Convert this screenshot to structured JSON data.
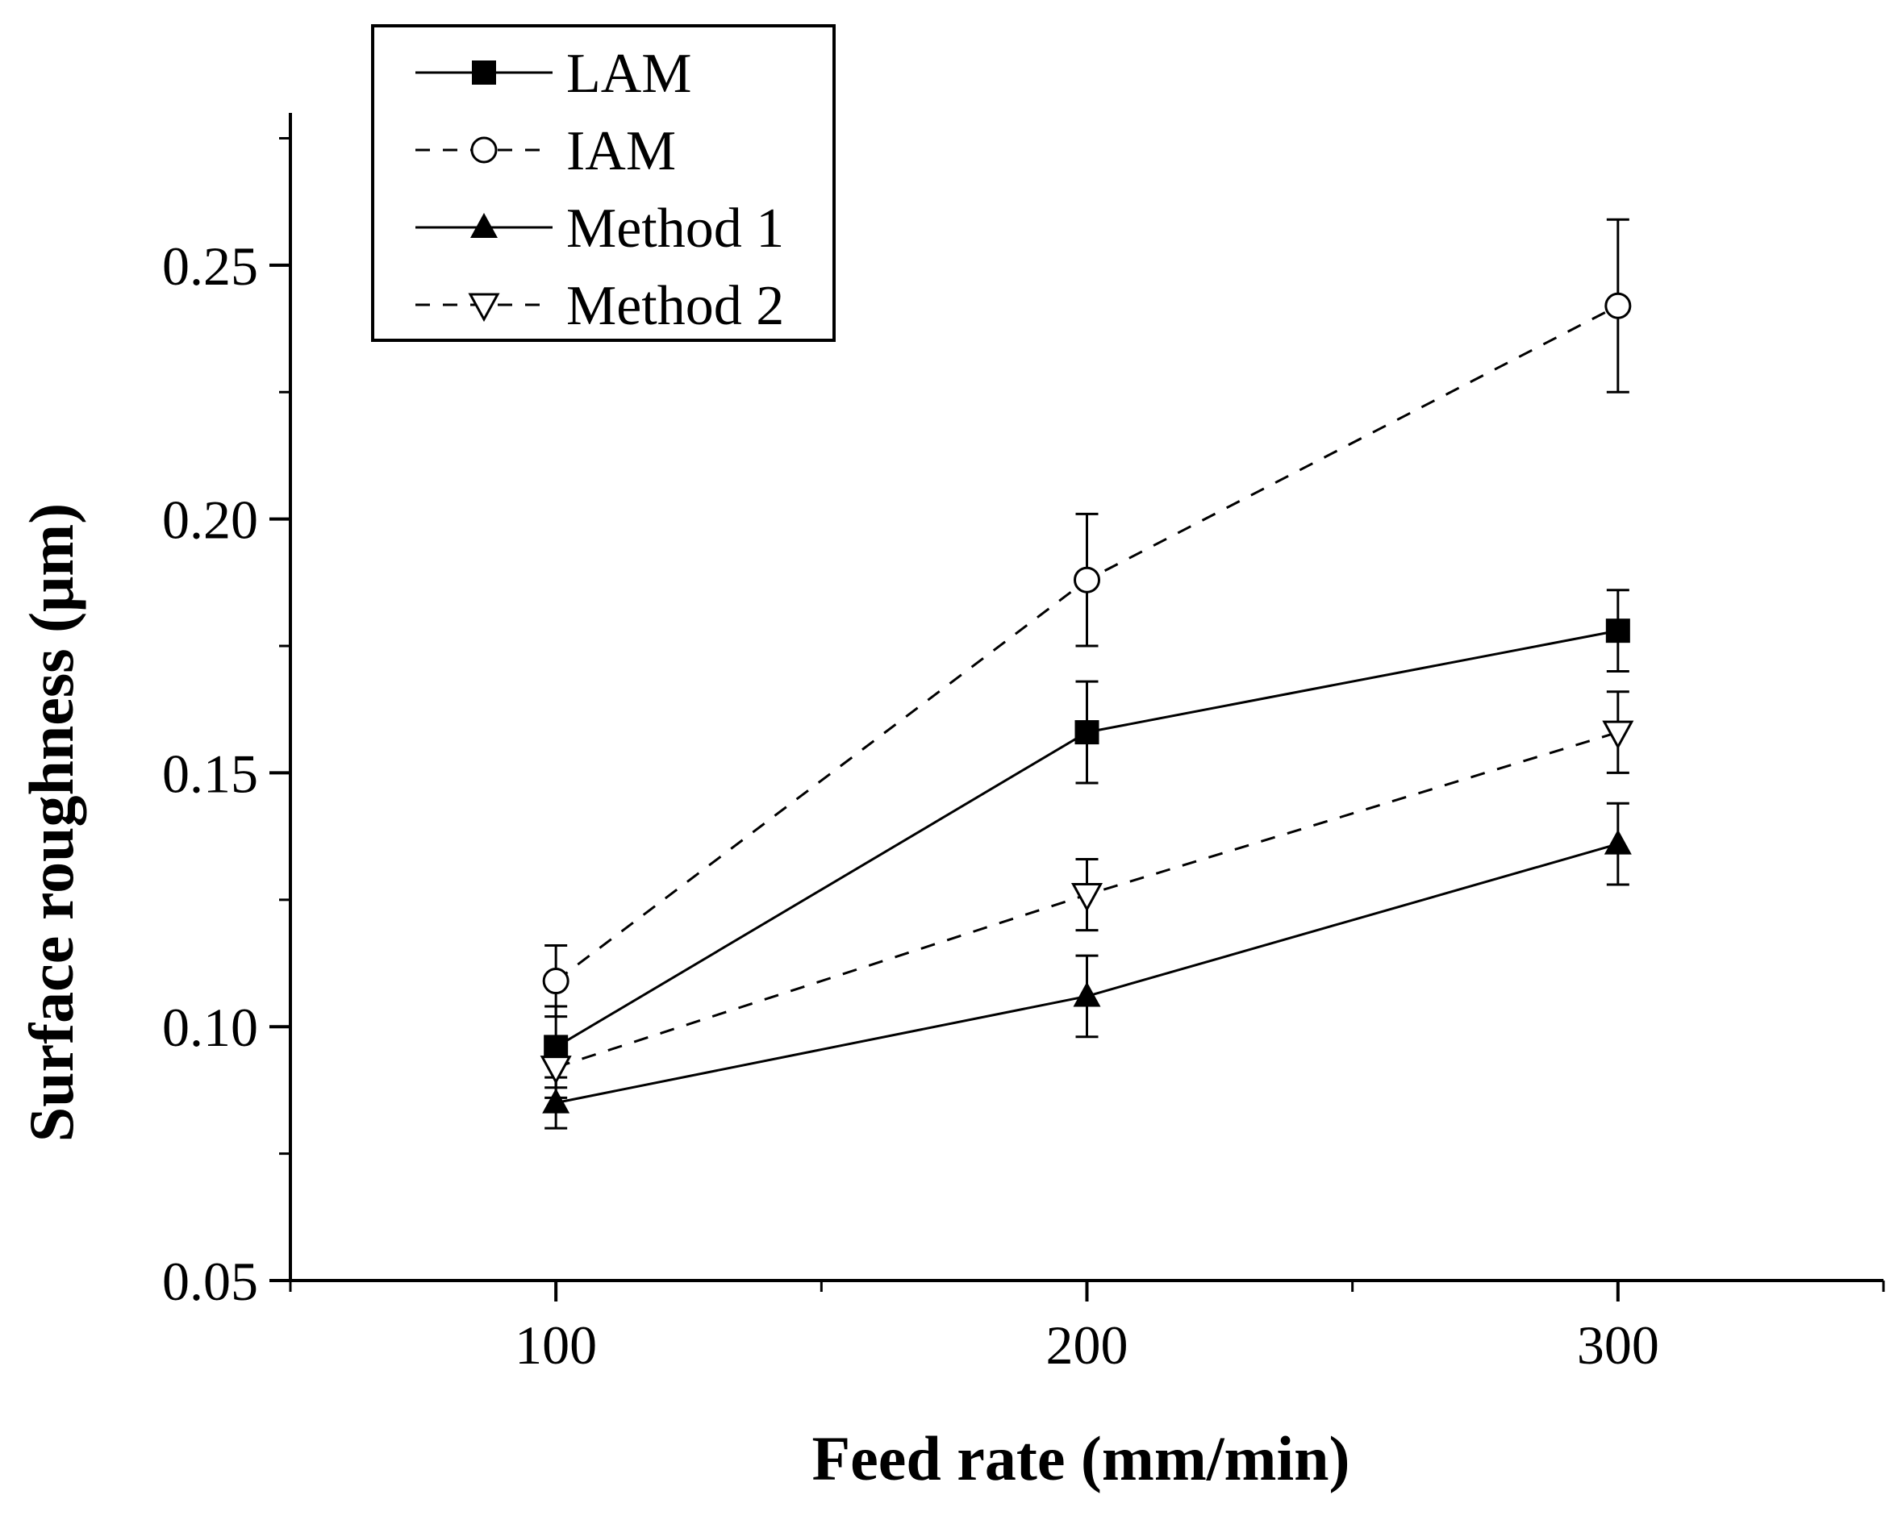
{
  "chart_data": {
    "type": "line",
    "xlabel": "Feed rate (mm/min)",
    "ylabel": "Surface roughness (μm)",
    "xlim": [
      50,
      350
    ],
    "ylim": [
      0.05,
      0.28
    ],
    "x_ticks": [
      100,
      200,
      300
    ],
    "x_tick_labels": [
      "100",
      "200",
      "300"
    ],
    "x_minor_ticks": [
      50,
      150,
      250,
      350
    ],
    "y_ticks": [
      0.05,
      0.1,
      0.15,
      0.2,
      0.25
    ],
    "y_tick_labels": [
      "0.05",
      "0.10",
      "0.15",
      "0.20",
      "0.25"
    ],
    "y_minor_ticks": [
      0.075,
      0.125,
      0.175,
      0.225,
      0.275
    ],
    "grid": false,
    "legend_position": "top-left",
    "x": [
      100,
      200,
      300
    ],
    "series": [
      {
        "name": "LAM",
        "marker": "square-filled",
        "line": "solid",
        "color": "#000000",
        "values": [
          0.096,
          0.158,
          0.178
        ],
        "errors": [
          0.008,
          0.01,
          0.008
        ]
      },
      {
        "name": "IAM",
        "marker": "circle-open",
        "line": "dashed",
        "color": "#000000",
        "values": [
          0.109,
          0.188,
          0.242
        ],
        "errors": [
          0.007,
          0.013,
          0.017
        ]
      },
      {
        "name": "Method 1",
        "marker": "triangle-up-filled",
        "line": "solid",
        "color": "#000000",
        "values": [
          0.085,
          0.106,
          0.136
        ],
        "errors": [
          0.005,
          0.008,
          0.008
        ]
      },
      {
        "name": "Method 2",
        "marker": "triangle-down-open",
        "line": "dashed",
        "color": "#000000",
        "values": [
          0.092,
          0.126,
          0.158
        ],
        "errors": [
          0.006,
          0.007,
          0.008
        ]
      }
    ]
  }
}
